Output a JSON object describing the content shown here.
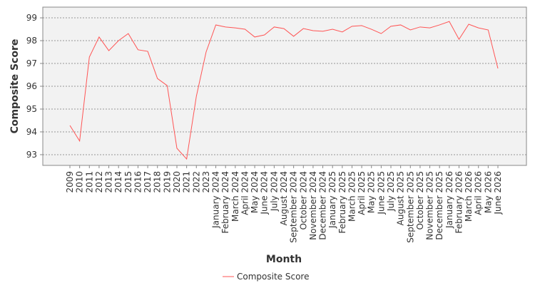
{
  "chart_data": {
    "type": "line",
    "x_label": "Month",
    "y_label": "Composite Score",
    "categories": [
      "2009",
      "2010",
      "2011",
      "2012",
      "2013",
      "2014",
      "2015",
      "2016",
      "2017",
      "2018",
      "2019",
      "2020",
      "2021",
      "2022",
      "2023",
      "January 2024",
      "February 2024",
      "March 2024",
      "April 2024",
      "May 2024",
      "June 2024",
      "July 2024",
      "August 2024",
      "September 2024",
      "October 2024",
      "November 2024",
      "December 2024",
      "January 2025",
      "February 2025",
      "March 2025",
      "April 2025",
      "May 2025",
      "June 2025",
      "July 2025",
      "August 2025",
      "September 2025",
      "October 2025",
      "November 2025",
      "December 2025",
      "January 2026",
      "February 2026",
      "March 2026",
      "April 2026",
      "May 2026",
      "June 2026"
    ],
    "series": [
      {
        "name": "Composite Score",
        "color": "#ff5555",
        "values": [
          94.28,
          93.6,
          97.28,
          98.16,
          97.56,
          98.0,
          98.31,
          97.6,
          97.53,
          96.34,
          96.03,
          93.28,
          92.81,
          95.56,
          97.5,
          98.69,
          98.6,
          98.56,
          98.5,
          98.16,
          98.25,
          98.6,
          98.53,
          98.19,
          98.53,
          98.44,
          98.41,
          98.5,
          98.38,
          98.63,
          98.66,
          98.5,
          98.31,
          98.63,
          98.69,
          98.47,
          98.6,
          98.56,
          98.69,
          98.84,
          98.06,
          98.72,
          98.56,
          98.47,
          96.78
        ]
      }
    ],
    "ylim": [
      92.53,
      99.47
    ],
    "yticks": [
      93,
      94,
      95,
      96,
      97,
      98,
      99
    ],
    "grid": true,
    "legend": "bottom"
  }
}
